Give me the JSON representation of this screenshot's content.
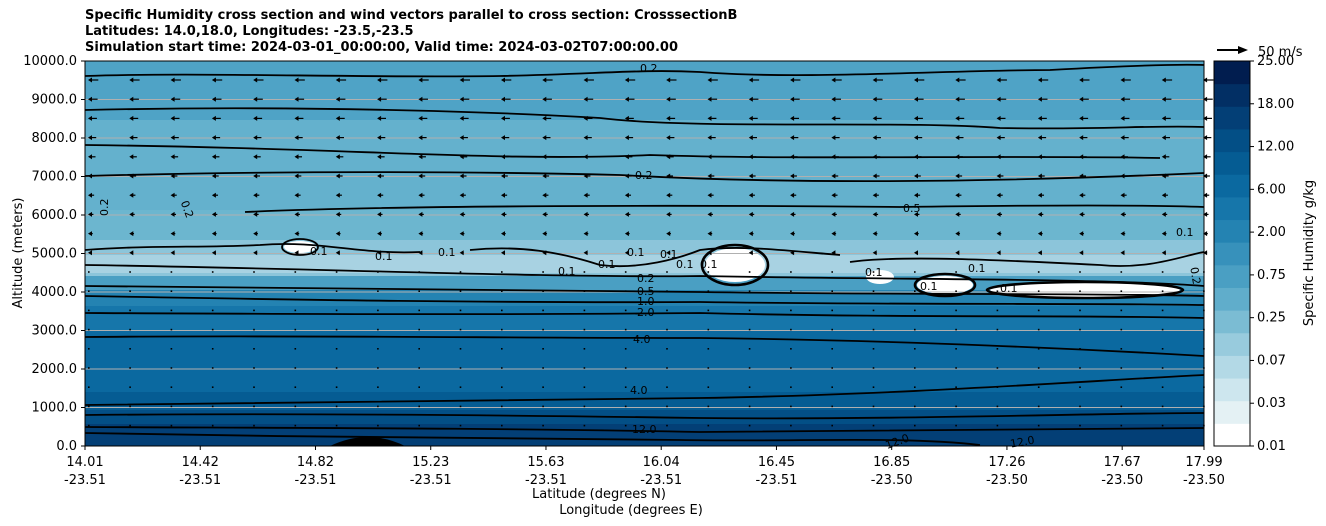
{
  "chart_data": {
    "type": "heatmap",
    "title_lines": [
      "Specific Humidity cross section and wind vectors parallel to cross section: CrosssectionB",
      "Latitudes: 14.0,18.0, Longitudes: -23.5,-23.5",
      "Simulation start time: 2024-03-01_00:00:00, Valid time: 2024-03-02T07:00:00.00"
    ],
    "ylabel": "Altitude (meters)",
    "xlabel_lat": "Latitude (degrees N)",
    "xlabel_lon": "Longitude (degrees E)",
    "ylim": [
      0,
      10000
    ],
    "grid": true,
    "y_ticks": [
      "0.0",
      "1000.0",
      "2000.0",
      "3000.0",
      "4000.0",
      "5000.0",
      "6000.0",
      "7000.0",
      "8000.0",
      "9000.0",
      "10000.0"
    ],
    "x_ticks": [
      {
        "lat": "14.01",
        "lon": "-23.51"
      },
      {
        "lat": "14.42",
        "lon": "-23.51"
      },
      {
        "lat": "14.82",
        "lon": "-23.51"
      },
      {
        "lat": "15.23",
        "lon": "-23.51"
      },
      {
        "lat": "15.63",
        "lon": "-23.51"
      },
      {
        "lat": "16.04",
        "lon": "-23.51"
      },
      {
        "lat": "16.45",
        "lon": "-23.51"
      },
      {
        "lat": "16.85",
        "lon": "-23.50"
      },
      {
        "lat": "17.26",
        "lon": "-23.50"
      },
      {
        "lat": "17.67",
        "lon": "-23.50"
      },
      {
        "lat": "17.99",
        "lon": "-23.50"
      }
    ],
    "colorbar": {
      "label": "Specific Humidity g/kg",
      "levels": [
        "0.01",
        "0.03",
        "0.07",
        "0.25",
        "0.75",
        "2.00",
        "6.00",
        "12.00",
        "18.00",
        "25.00"
      ],
      "colors": [
        "#ffffff",
        "#e4f1f4",
        "#cde6ee",
        "#b3d9e6",
        "#98cbdd",
        "#7bbcd3",
        "#60adcb",
        "#4a9fc3",
        "#3791bb",
        "#2483b2",
        "#1676aa",
        "#0b69a0",
        "#055c93",
        "#034f86",
        "#033f76",
        "#022f64",
        "#011d4f"
      ]
    },
    "quiver_key": "50 m/s",
    "contour_labels": [
      "0.2",
      "0.2",
      "0.2",
      "0.2",
      "0.5",
      "0.1",
      "0.1",
      "0.1",
      "0.1",
      "0.1",
      "0.1",
      "0.1",
      "0.1",
      "0.1",
      "0.1",
      "0.1",
      "0.1",
      "0.1",
      "0.1",
      "0.2",
      "0.5",
      "1.0",
      "2.0",
      "4.0",
      "4.0",
      "12.0",
      "12.0",
      "12.0",
      "0.2"
    ]
  }
}
